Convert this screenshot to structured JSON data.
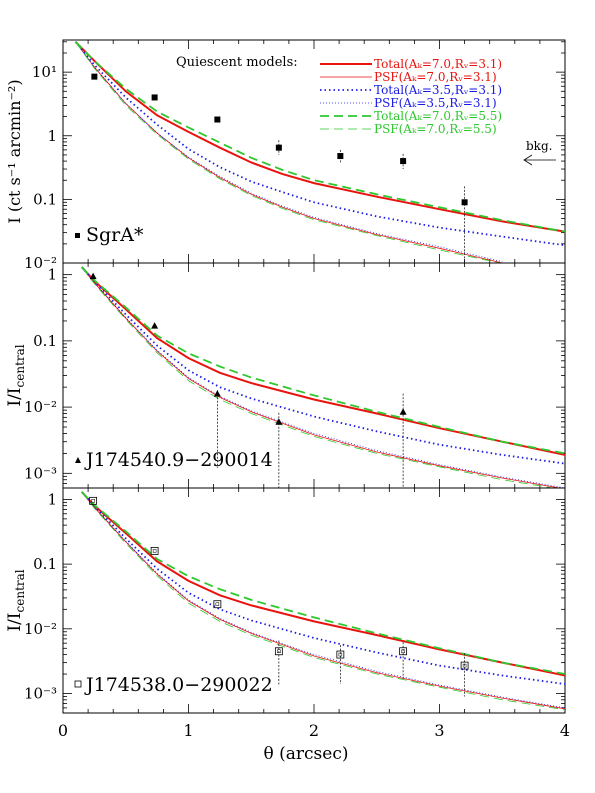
{
  "chart_data": [
    {
      "type": "line",
      "id": "sgra",
      "ylabel": "I (ct s⁻¹ arcmin⁻²)",
      "ylog": true,
      "ylim": [
        0.01,
        32
      ],
      "xlim": [
        0,
        4
      ],
      "yticks": [
        0.01,
        0.1,
        1,
        10
      ],
      "ytick_labels": [
        "10⁻²",
        "0.1",
        "1",
        "10¹"
      ],
      "source_label": "SgrA*",
      "marker": "filled-square",
      "legend_title": "Quiescent models:",
      "legend": [
        {
          "label": "Total(Aₖ=7.0,Rᵥ=3.1)",
          "color": "#e8140f",
          "style": "solid-thick"
        },
        {
          "label": "PSF(Aₖ=7.0,Rᵥ=3.1)",
          "color": "#e8140f",
          "style": "solid-thin"
        },
        {
          "label": "Total(Aₖ=3.5,Rᵥ=3.1)",
          "color": "#1a1ae6",
          "style": "dotted-thick"
        },
        {
          "label": "PSF(Aₖ=3.5,Rᵥ=3.1)",
          "color": "#1a1ae6",
          "style": "dotted-thin"
        },
        {
          "label": "Total(Aₖ=7.0,Rᵥ=5.5)",
          "color": "#2ec82e",
          "style": "dashed-thick"
        },
        {
          "label": "PSF(Aₖ=7.0,Rᵥ=5.5)",
          "color": "#2ec82e",
          "style": "dashed-thin"
        }
      ],
      "bkg_label": "bkg.",
      "series": [
        {
          "name": "Total(Aₖ=7.0,Rᵥ=3.1)",
          "color": "#e8140f",
          "style": "solid-thick",
          "x": [
            0.1,
            0.25,
            0.5,
            0.75,
            1.0,
            1.25,
            1.5,
            1.75,
            2.0,
            2.5,
            3.0,
            3.5,
            4.0
          ],
          "y": [
            30,
            15,
            5.0,
            2.1,
            1.15,
            0.65,
            0.38,
            0.25,
            0.18,
            0.11,
            0.07,
            0.045,
            0.031
          ]
        },
        {
          "name": "PSF(Aₖ=7.0,Rᵥ=3.1)",
          "color": "#e8140f",
          "style": "solid-thin",
          "x": [
            0.1,
            0.25,
            0.5,
            0.75,
            1.0,
            1.25,
            1.5,
            1.75,
            2.0,
            2.5,
            3.0,
            3.5
          ],
          "y": [
            30,
            12,
            3.2,
            1.1,
            0.45,
            0.22,
            0.12,
            0.075,
            0.05,
            0.028,
            0.017,
            0.01
          ]
        },
        {
          "name": "Total(Aₖ=3.5,Rᵥ=3.1)",
          "color": "#1a1ae6",
          "style": "dotted-thick",
          "x": [
            0.1,
            0.25,
            0.5,
            0.75,
            1.0,
            1.25,
            1.5,
            1.75,
            2.0,
            2.5,
            3.0,
            3.5,
            4.0
          ],
          "y": [
            30,
            13,
            4.0,
            1.5,
            0.62,
            0.32,
            0.19,
            0.13,
            0.09,
            0.054,
            0.036,
            0.026,
            0.019
          ]
        },
        {
          "name": "PSF(Aₖ=3.5,Rᵥ=3.1)",
          "color": "#1a1ae6",
          "style": "dotted-thin",
          "x": [
            0.1,
            0.25,
            0.5,
            0.75,
            1.0,
            1.25,
            1.5,
            1.75,
            2.0,
            2.5,
            3.0,
            3.5
          ],
          "y": [
            30,
            12,
            3.2,
            1.1,
            0.46,
            0.23,
            0.125,
            0.078,
            0.052,
            0.029,
            0.018,
            0.0105
          ]
        },
        {
          "name": "Total(Aₖ=7.0,Rᵥ=5.5)",
          "color": "#2ec82e",
          "style": "dashed-thick",
          "x": [
            0.1,
            0.25,
            0.5,
            0.75,
            1.0,
            1.25,
            1.5,
            1.75,
            2.0,
            2.5,
            3.0,
            3.5,
            4.0
          ],
          "y": [
            30,
            15,
            5.5,
            2.4,
            1.35,
            0.78,
            0.45,
            0.29,
            0.2,
            0.12,
            0.075,
            0.047,
            0.031
          ]
        },
        {
          "name": "PSF(Aₖ=7.0,Rᵥ=5.5)",
          "color": "#2ec82e",
          "style": "dashed-thin",
          "x": [
            0.1,
            0.25,
            0.5,
            0.75,
            1.0,
            1.25,
            1.5,
            1.75,
            2.0,
            2.5,
            3.0,
            3.5
          ],
          "y": [
            30,
            11.5,
            3.0,
            1.05,
            0.43,
            0.21,
            0.115,
            0.072,
            0.048,
            0.027,
            0.016,
            0.0098
          ]
        }
      ],
      "points": [
        {
          "x": 0.25,
          "y": 8.5
        },
        {
          "x": 0.73,
          "y": 4.0
        },
        {
          "x": 1.23,
          "y": 1.8
        },
        {
          "x": 1.72,
          "y": 0.65,
          "err": [
            0.5,
            0.85
          ]
        },
        {
          "x": 2.21,
          "y": 0.48,
          "err": [
            0.37,
            0.6
          ]
        },
        {
          "x": 2.71,
          "y": 0.4,
          "err": [
            0.3,
            0.52
          ]
        },
        {
          "x": 3.2,
          "y": 0.09,
          "err": [
            0.01,
            0.16
          ]
        }
      ]
    },
    {
      "type": "line",
      "id": "j174540",
      "ylabel": "I/Icentral",
      "ylabel_main": "I/I",
      "ylabel_sub": "central",
      "ylog": true,
      "ylim": [
        0.0006,
        1.5
      ],
      "xlim": [
        0,
        4
      ],
      "yticks": [
        0.001,
        0.01,
        0.1,
        1
      ],
      "ytick_labels": [
        "10⁻³",
        "10⁻²",
        "0.1",
        "1"
      ],
      "source_label": "J174540.9−290014",
      "marker": "filled-triangle",
      "series": [
        {
          "color": "#e8140f",
          "style": "solid-thick",
          "x": [
            0.15,
            0.25,
            0.5,
            0.75,
            1.0,
            1.25,
            1.5,
            2.0,
            2.5,
            3.0,
            3.5,
            4.0
          ],
          "y": [
            1.3,
            0.8,
            0.3,
            0.11,
            0.055,
            0.033,
            0.023,
            0.013,
            0.008,
            0.0048,
            0.003,
            0.0019
          ]
        },
        {
          "color": "#e8140f",
          "style": "solid-thin",
          "x": [
            0.15,
            0.25,
            0.5,
            0.75,
            1.0,
            1.25,
            1.5,
            2.0,
            2.5,
            3.0,
            3.5,
            4.0
          ],
          "y": [
            1.3,
            0.75,
            0.22,
            0.07,
            0.027,
            0.014,
            0.0085,
            0.0038,
            0.0021,
            0.0013,
            0.00085,
            0.00058
          ]
        },
        {
          "color": "#1a1ae6",
          "style": "dotted-thick",
          "x": [
            0.15,
            0.25,
            0.5,
            0.75,
            1.0,
            1.25,
            1.5,
            2.0,
            2.5,
            3.0,
            3.5,
            4.0
          ],
          "y": [
            1.3,
            0.78,
            0.25,
            0.085,
            0.036,
            0.02,
            0.0135,
            0.0072,
            0.0043,
            0.0027,
            0.0019,
            0.0014
          ]
        },
        {
          "color": "#1a1ae6",
          "style": "dotted-thin",
          "x": [
            0.15,
            0.25,
            0.5,
            0.75,
            1.0,
            1.25,
            1.5,
            2.0,
            2.5,
            3.0,
            3.5,
            4.0
          ],
          "y": [
            1.3,
            0.76,
            0.225,
            0.072,
            0.028,
            0.0145,
            0.0088,
            0.004,
            0.0022,
            0.00135,
            0.00088,
            0.0006
          ]
        },
        {
          "color": "#2ec82e",
          "style": "dashed-thick",
          "x": [
            0.15,
            0.25,
            0.5,
            0.75,
            1.0,
            1.25,
            1.5,
            2.0,
            2.5,
            3.0,
            3.5,
            4.0
          ],
          "y": [
            1.3,
            0.82,
            0.32,
            0.12,
            0.065,
            0.041,
            0.028,
            0.015,
            0.0085,
            0.005,
            0.003,
            0.002
          ]
        },
        {
          "color": "#2ec82e",
          "style": "dashed-thin",
          "x": [
            0.15,
            0.25,
            0.5,
            0.75,
            1.0,
            1.25,
            1.5,
            2.0,
            2.5,
            3.0,
            3.5,
            4.0
          ],
          "y": [
            1.3,
            0.73,
            0.21,
            0.066,
            0.025,
            0.013,
            0.008,
            0.0036,
            0.002,
            0.00125,
            0.0008,
            0.00056
          ]
        }
      ],
      "points": [
        {
          "x": 0.24,
          "y": 0.95
        },
        {
          "x": 0.73,
          "y": 0.17
        },
        {
          "x": 1.23,
          "y": 0.016,
          "err": [
            0.0012,
            0.018
          ]
        },
        {
          "x": 1.72,
          "y": 0.006,
          "err": [
            0.0006,
            0.0082
          ]
        },
        {
          "x": 2.71,
          "y": 0.0085,
          "err": [
            0.0006,
            0.016
          ]
        }
      ]
    },
    {
      "type": "line",
      "id": "j174538",
      "ylabel": "I/Icentral",
      "ylabel_main": "I/I",
      "ylabel_sub": "central",
      "ylog": true,
      "ylim": [
        0.0005,
        1.5
      ],
      "xlim": [
        0,
        4
      ],
      "yticks": [
        0.001,
        0.01,
        0.1,
        1
      ],
      "ytick_labels": [
        "10⁻³",
        "10⁻²",
        "0.1",
        "1"
      ],
      "xticks": [
        0,
        1,
        2,
        3,
        4
      ],
      "xtick_labels": [
        "0",
        "1",
        "2",
        "3",
        "4"
      ],
      "xlabel": "θ (arcsec)",
      "source_label": "J174538.0−290022",
      "marker": "open-square",
      "series": [
        {
          "color": "#e8140f",
          "style": "solid-thick",
          "x": [
            0.15,
            0.25,
            0.5,
            0.75,
            1.0,
            1.25,
            1.5,
            2.0,
            2.5,
            3.0,
            3.5,
            4.0
          ],
          "y": [
            1.3,
            0.8,
            0.3,
            0.11,
            0.055,
            0.033,
            0.023,
            0.013,
            0.008,
            0.0048,
            0.003,
            0.0019
          ]
        },
        {
          "color": "#e8140f",
          "style": "solid-thin",
          "x": [
            0.15,
            0.25,
            0.5,
            0.75,
            1.0,
            1.25,
            1.5,
            2.0,
            2.5,
            3.0,
            3.5,
            4.0
          ],
          "y": [
            1.3,
            0.75,
            0.22,
            0.07,
            0.027,
            0.014,
            0.0085,
            0.0038,
            0.0021,
            0.0013,
            0.00085,
            0.00058
          ]
        },
        {
          "color": "#1a1ae6",
          "style": "dotted-thick",
          "x": [
            0.15,
            0.25,
            0.5,
            0.75,
            1.0,
            1.25,
            1.5,
            2.0,
            2.5,
            3.0,
            3.5,
            4.0
          ],
          "y": [
            1.3,
            0.78,
            0.25,
            0.085,
            0.036,
            0.02,
            0.0135,
            0.0072,
            0.0043,
            0.0027,
            0.0019,
            0.0014
          ]
        },
        {
          "color": "#1a1ae6",
          "style": "dotted-thin",
          "x": [
            0.15,
            0.25,
            0.5,
            0.75,
            1.0,
            1.25,
            1.5,
            2.0,
            2.5,
            3.0,
            3.5,
            4.0
          ],
          "y": [
            1.3,
            0.76,
            0.225,
            0.072,
            0.028,
            0.0145,
            0.0088,
            0.004,
            0.0022,
            0.00135,
            0.00088,
            0.0006
          ]
        },
        {
          "color": "#2ec82e",
          "style": "dashed-thick",
          "x": [
            0.15,
            0.25,
            0.5,
            0.75,
            1.0,
            1.25,
            1.5,
            2.0,
            2.5,
            3.0,
            3.5,
            4.0
          ],
          "y": [
            1.3,
            0.82,
            0.32,
            0.12,
            0.065,
            0.041,
            0.028,
            0.015,
            0.0085,
            0.005,
            0.003,
            0.002
          ]
        },
        {
          "color": "#2ec82e",
          "style": "dashed-thin",
          "x": [
            0.15,
            0.25,
            0.5,
            0.75,
            1.0,
            1.25,
            1.5,
            2.0,
            2.5,
            3.0,
            3.5,
            4.0
          ],
          "y": [
            1.3,
            0.73,
            0.21,
            0.066,
            0.025,
            0.013,
            0.008,
            0.0036,
            0.002,
            0.00125,
            0.0008,
            0.00056
          ]
        }
      ],
      "points": [
        {
          "x": 0.24,
          "y": 0.95
        },
        {
          "x": 0.73,
          "y": 0.16
        },
        {
          "x": 1.23,
          "y": 0.024
        },
        {
          "x": 1.72,
          "y": 0.0045,
          "err": [
            0.0013,
            0.0066
          ]
        },
        {
          "x": 2.21,
          "y": 0.004,
          "err": [
            0.0014,
            0.0056
          ]
        },
        {
          "x": 2.71,
          "y": 0.0045,
          "err": [
            0.0017,
            0.0062
          ]
        },
        {
          "x": 3.2,
          "y": 0.0027,
          "err": [
            0.0009,
            0.0042
          ]
        }
      ]
    }
  ]
}
